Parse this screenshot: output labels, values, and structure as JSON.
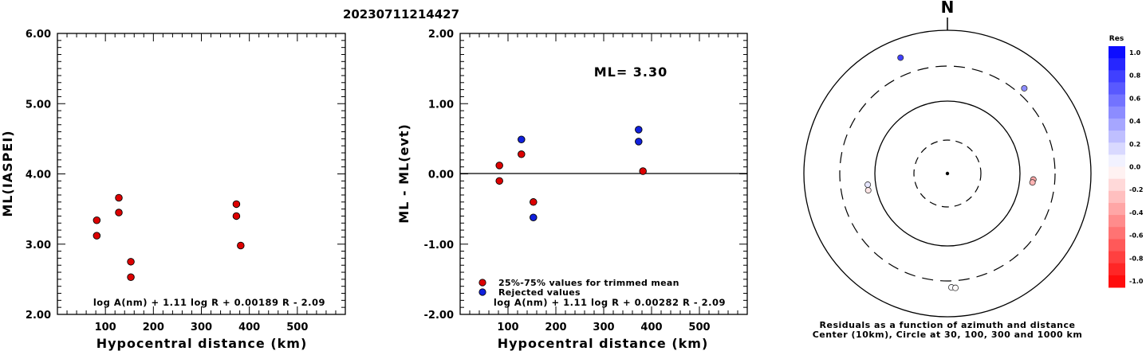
{
  "figure": {
    "title": "20230711214427"
  },
  "chart_data": [
    {
      "type": "scatter",
      "ylabel": "ML(IASPEI)",
      "xlabel": "Hypocentral distance (km)",
      "xlim": [
        0,
        600
      ],
      "ylim": [
        2.0,
        6.0
      ],
      "x_ticks": [
        "100",
        "200",
        "300",
        "400",
        "500"
      ],
      "y_ticks": [
        "2.00",
        "3.00",
        "4.00",
        "5.00",
        "6.00"
      ],
      "formula": "log A(nm) + 1.11 log R + 0.00189 R - 2.09",
      "series": [
        {
          "color": "#dd0000",
          "points": [
            {
              "x": 82,
              "y": 3.34
            },
            {
              "x": 82,
              "y": 3.12
            },
            {
              "x": 128,
              "y": 3.66
            },
            {
              "x": 128,
              "y": 3.45
            },
            {
              "x": 153,
              "y": 2.75
            },
            {
              "x": 153,
              "y": 2.53
            },
            {
              "x": 373,
              "y": 3.57
            },
            {
              "x": 373,
              "y": 3.4
            },
            {
              "x": 382,
              "y": 2.98
            }
          ]
        }
      ]
    },
    {
      "type": "scatter",
      "ylabel": "ML - ML(evt)",
      "xlabel": "Hypocentral distance (km)",
      "xlim": [
        0,
        600
      ],
      "ylim": [
        -2.0,
        2.0
      ],
      "x_ticks": [
        "100",
        "200",
        "300",
        "400",
        "500"
      ],
      "y_ticks": [
        "-2.00",
        "-1.00",
        "0.00",
        "1.00",
        "2.00"
      ],
      "annotation": "ML= 3.30",
      "zero_line": true,
      "formula": "log A(nm) + 1.11 log R + 0.00282 R - 2.09",
      "legend": [
        {
          "label": "25%-75% values for trimmed mean",
          "color": "#dd0000"
        },
        {
          "label": "Rejected values",
          "color": "#1020dd"
        }
      ],
      "series": [
        {
          "name": "25%-75% values for trimmed mean",
          "color": "#dd0000",
          "points": [
            {
              "x": 82,
              "y": 0.12
            },
            {
              "x": 82,
              "y": -0.1
            },
            {
              "x": 128,
              "y": 0.28
            },
            {
              "x": 153,
              "y": -0.4
            },
            {
              "x": 382,
              "y": 0.04
            }
          ]
        },
        {
          "name": "Rejected values",
          "color": "#1020dd",
          "points": [
            {
              "x": 128,
              "y": 0.49
            },
            {
              "x": 153,
              "y": -0.62
            },
            {
              "x": 373,
              "y": 0.63
            },
            {
              "x": 373,
              "y": 0.46
            }
          ]
        }
      ]
    },
    {
      "type": "polar-scatter",
      "north_label": "N",
      "caption": [
        "Residuals as a function of azimuth and distance",
        "Center (10km), Circle at 30, 100, 300 and 1000 km"
      ],
      "rings_km": [
        30,
        100,
        300,
        1000
      ],
      "colorbar": {
        "title": "Res",
        "range": [
          -1.0,
          1.0
        ],
        "ticks": [
          "1.0",
          "0.8",
          "0.6",
          "0.4",
          "0.2",
          "0.0",
          "-0.2",
          "-0.4",
          "-0.6",
          "-0.8",
          "-1.0"
        ]
      },
      "points": [
        {
          "azimuth_deg": 338,
          "distance_km": 540,
          "residual": 0.75
        },
        {
          "azimuth_deg": 42,
          "distance_km": 382,
          "residual": 0.45
        },
        {
          "azimuth_deg": 94,
          "distance_km": 153,
          "residual": -0.35
        },
        {
          "azimuth_deg": 96,
          "distance_km": 150,
          "residual": -0.3
        },
        {
          "azimuth_deg": 262,
          "distance_km": 128,
          "residual": 0.1
        },
        {
          "azimuth_deg": 258,
          "distance_km": 130,
          "residual": -0.1
        },
        {
          "azimuth_deg": 178,
          "distance_km": 373,
          "residual": 0.02
        },
        {
          "azimuth_deg": 176,
          "distance_km": 382,
          "residual": -0.02
        }
      ]
    }
  ]
}
